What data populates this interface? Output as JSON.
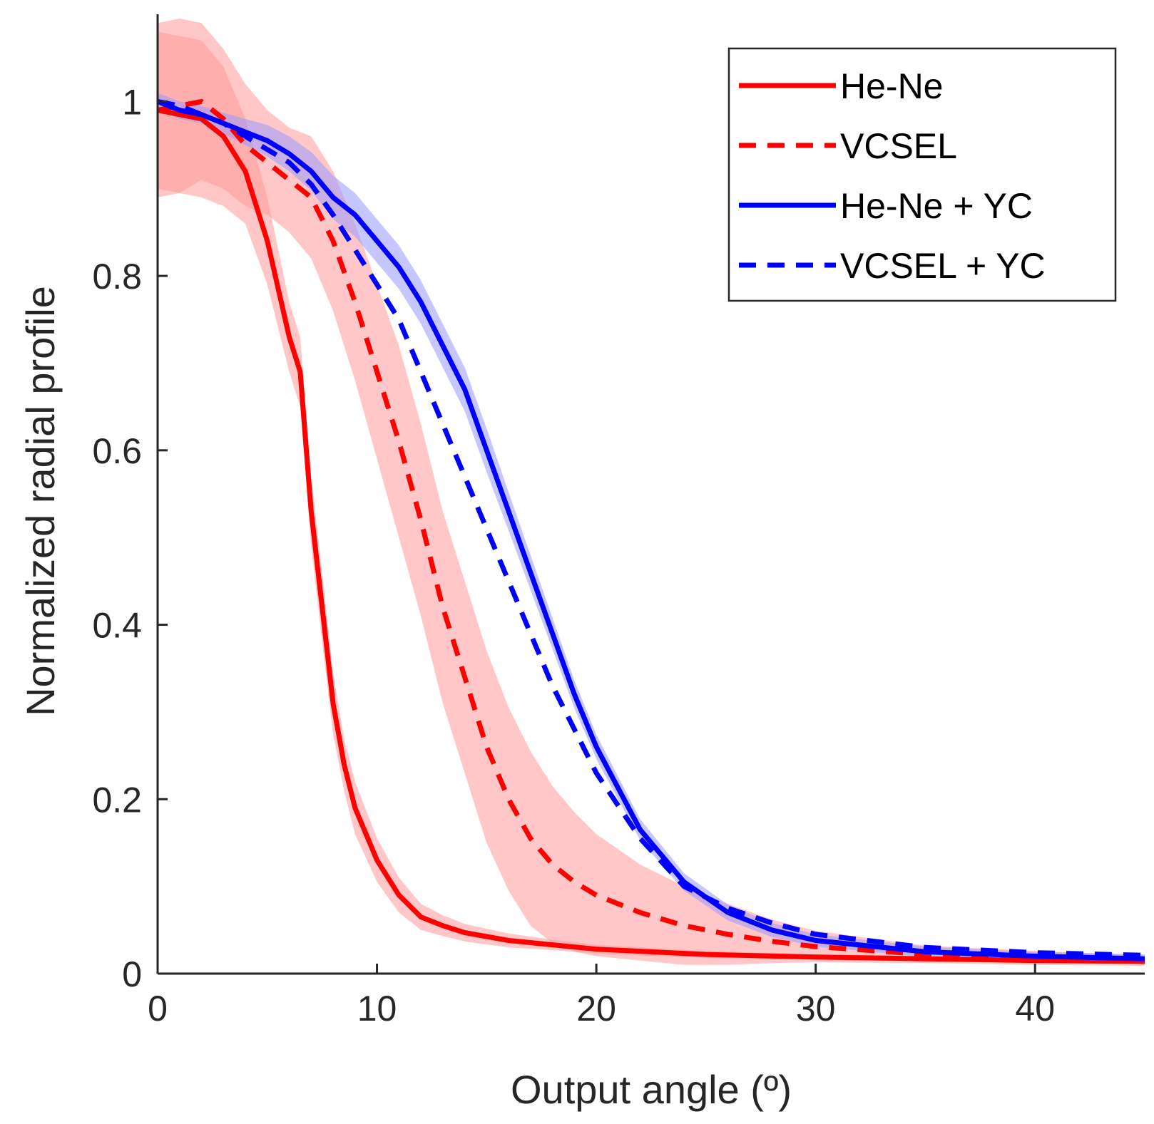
{
  "chart_data": {
    "type": "line",
    "xlabel": "Output angle (º)",
    "ylabel": "Normalized radial profile",
    "xlim": [
      0,
      45
    ],
    "ylim": [
      0,
      1.1
    ],
    "xticks": [
      0,
      10,
      20,
      30,
      40
    ],
    "yticks": [
      0,
      0.2,
      0.4,
      0.6,
      0.8,
      1
    ],
    "xtick_labels": [
      "0",
      "10",
      "20",
      "30",
      "40"
    ],
    "ytick_labels": [
      "0",
      "0.2",
      "0.4",
      "0.6",
      "0.8",
      "1"
    ],
    "grid": false,
    "legend_position": "top-right",
    "series": [
      {
        "name": "He-Ne",
        "color": "#ff0000",
        "band_color": "#ff9999",
        "style": "solid",
        "x": [
          0,
          1,
          2,
          3,
          4,
          5,
          6,
          6.5,
          7,
          7.5,
          8,
          8.5,
          9,
          10,
          11,
          12,
          13,
          14,
          16,
          18,
          20,
          25,
          30,
          35,
          40,
          45
        ],
        "y": [
          0.99,
          0.985,
          0.98,
          0.96,
          0.92,
          0.84,
          0.73,
          0.69,
          0.53,
          0.42,
          0.31,
          0.24,
          0.19,
          0.13,
          0.09,
          0.065,
          0.055,
          0.047,
          0.038,
          0.033,
          0.028,
          0.022,
          0.019,
          0.017,
          0.015,
          0.014
        ],
        "band": [
          0.09,
          0.09,
          0.09,
          0.08,
          0.06,
          0.05,
          0.04,
          0.04,
          0.04,
          0.04,
          0.035,
          0.03,
          0.03,
          0.025,
          0.02,
          0.015,
          0.012,
          0.01,
          0.008,
          0.006,
          0.005,
          0.004,
          0.003,
          0.003,
          0.003,
          0.003
        ]
      },
      {
        "name": "VCSEL",
        "color": "#ff0000",
        "band_color": "#ff9999",
        "style": "dashed",
        "x": [
          0,
          1,
          2,
          3,
          4,
          5,
          6,
          7,
          8,
          9,
          10,
          11,
          12,
          13,
          14,
          15,
          16,
          17,
          18,
          19,
          20,
          22,
          24,
          26,
          28,
          30,
          35,
          40,
          45
        ],
        "y": [
          0.99,
          0.995,
          1.0,
          0.98,
          0.95,
          0.93,
          0.91,
          0.89,
          0.84,
          0.77,
          0.69,
          0.61,
          0.52,
          0.42,
          0.34,
          0.26,
          0.2,
          0.155,
          0.125,
          0.105,
          0.09,
          0.07,
          0.055,
          0.045,
          0.037,
          0.031,
          0.022,
          0.018,
          0.015
        ],
        "band": [
          0.1,
          0.1,
          0.09,
          0.08,
          0.07,
          0.06,
          0.06,
          0.07,
          0.08,
          0.09,
          0.1,
          0.11,
          0.11,
          0.11,
          0.11,
          0.11,
          0.105,
          0.1,
          0.09,
          0.08,
          0.07,
          0.055,
          0.045,
          0.035,
          0.025,
          0.018,
          0.01,
          0.008,
          0.006
        ]
      },
      {
        "name": "He-Ne + YC",
        "color": "#0000ff",
        "band_color": "#9999ff",
        "style": "solid",
        "x": [
          0,
          1,
          2,
          3,
          4,
          5,
          6,
          7,
          8,
          9,
          10,
          11,
          12,
          13,
          14,
          15,
          16,
          17,
          18,
          19,
          20,
          22,
          24,
          26,
          28,
          30,
          35,
          40,
          45
        ],
        "y": [
          1.0,
          0.99,
          0.985,
          0.975,
          0.965,
          0.955,
          0.94,
          0.92,
          0.89,
          0.87,
          0.84,
          0.81,
          0.77,
          0.72,
          0.67,
          0.6,
          0.53,
          0.46,
          0.39,
          0.32,
          0.26,
          0.165,
          0.105,
          0.07,
          0.05,
          0.038,
          0.025,
          0.02,
          0.017
        ],
        "band": [
          0.01,
          0.01,
          0.01,
          0.012,
          0.015,
          0.018,
          0.02,
          0.022,
          0.025,
          0.025,
          0.025,
          0.025,
          0.025,
          0.025,
          0.025,
          0.025,
          0.022,
          0.02,
          0.018,
          0.016,
          0.014,
          0.012,
          0.01,
          0.009,
          0.008,
          0.007,
          0.006,
          0.005,
          0.005
        ]
      },
      {
        "name": "VCSEL + YC",
        "color": "#0000ff",
        "band_color": "#9999ff",
        "style": "dashed",
        "x": [
          0,
          1,
          2,
          3,
          4,
          5,
          6,
          7,
          8,
          9,
          10,
          11,
          12,
          13,
          14,
          15,
          16,
          17,
          18,
          19,
          20,
          22,
          24,
          26,
          28,
          30,
          35,
          40,
          45
        ],
        "y": [
          1.0,
          0.995,
          0.985,
          0.975,
          0.96,
          0.945,
          0.93,
          0.905,
          0.87,
          0.83,
          0.79,
          0.75,
          0.69,
          0.63,
          0.57,
          0.51,
          0.45,
          0.39,
          0.33,
          0.28,
          0.23,
          0.155,
          0.1,
          0.075,
          0.058,
          0.045,
          0.03,
          0.024,
          0.021
        ]
      }
    ]
  }
}
